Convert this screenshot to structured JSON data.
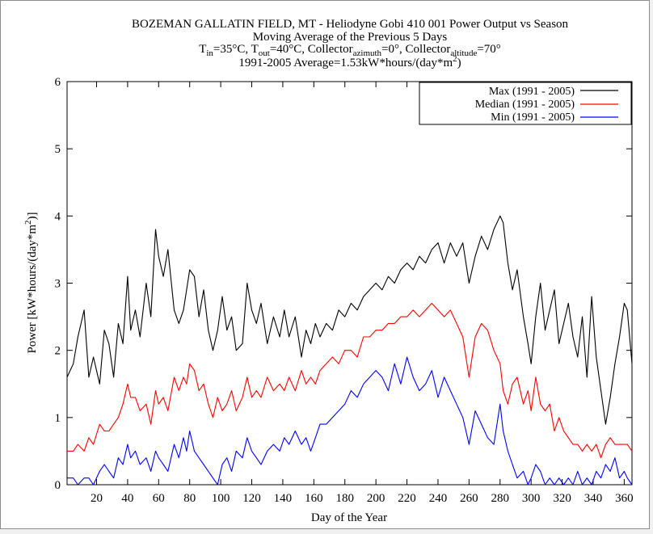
{
  "chart_data": {
    "type": "line",
    "title": "BOZEMAN GALLATIN FIELD, MT - Heliodyne Gobi 410 001 Power Output vs Season",
    "subtitle_lines": [
      "Moving Average of the Previous 5 Days",
      "T_in=35°C, T_out=40°C, Collector_azimuth=0°, Collector_altitude=70°",
      "1991-2005 Average=1.53kW*hours/(day*m^2)"
    ],
    "title_parts": {
      "l2_a": "T",
      "l2_a_sub": "in",
      "l2_b": "=35°C, T",
      "l2_b_sub": "out",
      "l2_c": "=40°C, Collector",
      "l2_c_sub": "azimuth",
      "l2_d": "=0°, Collector",
      "l2_d_sub": "altitude",
      "l2_e": "=70°",
      "l3_a": "1991-2005 Average=1.53kW*hours/(day*m",
      "l3_sup": "2",
      "l3_b": ")"
    },
    "xlabel": "Day of the Year",
    "ylabel_parts": {
      "a": "Power [kW*hours/(day*m",
      "sup": "2",
      "b": ")]"
    },
    "xlim": [
      1,
      365
    ],
    "ylim": [
      0,
      6
    ],
    "xticks": [
      20,
      40,
      60,
      80,
      100,
      120,
      140,
      160,
      180,
      200,
      220,
      240,
      260,
      280,
      300,
      320,
      340,
      360
    ],
    "yticks": [
      0,
      1,
      2,
      3,
      4,
      5,
      6
    ],
    "grid": false,
    "legend_position": "top-right",
    "series": [
      {
        "name": "Max (1991 - 2005)",
        "color": "#000000",
        "x": [
          1,
          5,
          8,
          12,
          15,
          18,
          22,
          25,
          28,
          31,
          34,
          37,
          40,
          42,
          45,
          48,
          52,
          55,
          58,
          60,
          63,
          66,
          70,
          73,
          76,
          78,
          80,
          83,
          86,
          89,
          92,
          95,
          98,
          101,
          104,
          107,
          110,
          114,
          117,
          120,
          123,
          126,
          130,
          134,
          138,
          141,
          144,
          148,
          152,
          155,
          158,
          161,
          164,
          168,
          172,
          176,
          180,
          184,
          188,
          192,
          196,
          200,
          204,
          208,
          212,
          216,
          220,
          224,
          228,
          232,
          236,
          240,
          244,
          248,
          252,
          256,
          260,
          264,
          268,
          272,
          276,
          280,
          282,
          285,
          288,
          291,
          295,
          298,
          300,
          303,
          306,
          309,
          312,
          315,
          318,
          321,
          324,
          327,
          330,
          333,
          336,
          339,
          342,
          345,
          348,
          351,
          354,
          357,
          360,
          362,
          365
        ],
        "values": [
          1.6,
          1.8,
          2.2,
          2.6,
          1.6,
          1.9,
          1.5,
          2.3,
          2.1,
          1.6,
          2.4,
          2.1,
          3.1,
          2.3,
          2.6,
          2.2,
          3.0,
          2.5,
          3.8,
          3.4,
          3.1,
          3.5,
          2.6,
          2.4,
          2.6,
          2.9,
          3.2,
          3.1,
          2.5,
          2.9,
          2.3,
          2.0,
          2.3,
          2.8,
          2.3,
          2.5,
          2.0,
          2.1,
          3.0,
          2.6,
          2.4,
          2.7,
          2.1,
          2.5,
          2.2,
          2.6,
          2.2,
          2.5,
          1.9,
          2.3,
          2.1,
          2.4,
          2.2,
          2.4,
          2.3,
          2.6,
          2.5,
          2.7,
          2.6,
          2.8,
          2.9,
          3.0,
          2.9,
          3.1,
          3.0,
          3.2,
          3.3,
          3.2,
          3.4,
          3.3,
          3.5,
          3.6,
          3.3,
          3.6,
          3.4,
          3.6,
          3.0,
          3.4,
          3.7,
          3.5,
          3.8,
          4.0,
          3.9,
          3.3,
          2.9,
          3.2,
          2.5,
          2.1,
          1.8,
          2.5,
          3.0,
          2.3,
          2.6,
          2.9,
          2.1,
          2.4,
          2.7,
          2.2,
          1.9,
          2.5,
          1.6,
          2.8,
          1.9,
          1.4,
          0.9,
          1.3,
          1.8,
          2.2,
          2.7,
          2.6,
          1.8
        ]
      },
      {
        "name": "Median (1991 - 2005)",
        "color": "#ff0000",
        "x": [
          1,
          5,
          8,
          12,
          15,
          18,
          22,
          25,
          28,
          31,
          34,
          37,
          40,
          42,
          45,
          48,
          52,
          55,
          58,
          60,
          63,
          66,
          70,
          73,
          76,
          78,
          80,
          83,
          86,
          89,
          92,
          95,
          98,
          101,
          104,
          107,
          110,
          114,
          117,
          120,
          123,
          126,
          130,
          134,
          138,
          141,
          144,
          148,
          152,
          155,
          158,
          161,
          164,
          168,
          172,
          176,
          180,
          184,
          188,
          192,
          196,
          200,
          204,
          208,
          212,
          216,
          220,
          224,
          228,
          232,
          236,
          240,
          244,
          248,
          252,
          256,
          260,
          264,
          268,
          272,
          276,
          280,
          282,
          285,
          288,
          291,
          295,
          298,
          300,
          303,
          306,
          309,
          312,
          315,
          318,
          321,
          324,
          327,
          330,
          333,
          336,
          339,
          342,
          345,
          348,
          351,
          354,
          357,
          360,
          362,
          365
        ],
        "values": [
          0.5,
          0.5,
          0.6,
          0.5,
          0.7,
          0.6,
          0.9,
          0.8,
          0.8,
          0.9,
          1.0,
          1.2,
          1.5,
          1.3,
          1.3,
          1.1,
          1.2,
          0.9,
          1.4,
          1.2,
          1.3,
          1.1,
          1.6,
          1.4,
          1.6,
          1.5,
          1.8,
          1.7,
          1.4,
          1.5,
          1.2,
          1.0,
          1.3,
          1.1,
          1.2,
          1.4,
          1.1,
          1.3,
          1.6,
          1.3,
          1.4,
          1.3,
          1.6,
          1.4,
          1.5,
          1.4,
          1.6,
          1.4,
          1.7,
          1.5,
          1.6,
          1.5,
          1.7,
          1.8,
          1.9,
          1.8,
          2.0,
          2.0,
          1.9,
          2.2,
          2.2,
          2.3,
          2.3,
          2.4,
          2.4,
          2.5,
          2.5,
          2.6,
          2.5,
          2.6,
          2.7,
          2.6,
          2.5,
          2.6,
          2.4,
          2.2,
          1.6,
          2.2,
          2.4,
          2.3,
          2.0,
          1.8,
          1.4,
          1.2,
          1.5,
          1.6,
          1.2,
          1.4,
          1.1,
          1.6,
          1.2,
          1.1,
          1.2,
          0.8,
          1.0,
          0.8,
          0.7,
          0.6,
          0.6,
          0.5,
          0.6,
          0.5,
          0.6,
          0.4,
          0.6,
          0.7,
          0.6,
          0.6,
          0.6,
          0.6,
          0.5
        ]
      },
      {
        "name": "Min (1991 - 2005)",
        "color": "#0000ff",
        "x": [
          1,
          5,
          8,
          12,
          15,
          18,
          22,
          25,
          28,
          31,
          34,
          37,
          40,
          42,
          45,
          48,
          52,
          55,
          58,
          60,
          63,
          66,
          70,
          73,
          76,
          78,
          80,
          83,
          86,
          89,
          92,
          95,
          98,
          101,
          104,
          107,
          110,
          114,
          117,
          120,
          123,
          126,
          130,
          134,
          138,
          141,
          144,
          148,
          152,
          155,
          158,
          161,
          164,
          168,
          172,
          176,
          180,
          184,
          188,
          192,
          196,
          200,
          204,
          208,
          212,
          216,
          220,
          224,
          228,
          232,
          236,
          240,
          244,
          248,
          252,
          256,
          260,
          264,
          268,
          272,
          276,
          280,
          282,
          285,
          288,
          291,
          295,
          298,
          300,
          303,
          306,
          309,
          312,
          315,
          318,
          321,
          324,
          327,
          330,
          333,
          336,
          339,
          342,
          345,
          348,
          351,
          354,
          357,
          360,
          362,
          365
        ],
        "values": [
          0.1,
          0.1,
          0.0,
          0.1,
          0.1,
          0.0,
          0.2,
          0.3,
          0.2,
          0.1,
          0.4,
          0.3,
          0.6,
          0.4,
          0.5,
          0.3,
          0.4,
          0.2,
          0.5,
          0.4,
          0.3,
          0.2,
          0.6,
          0.4,
          0.7,
          0.5,
          0.8,
          0.5,
          0.4,
          0.3,
          0.2,
          0.1,
          0.0,
          0.3,
          0.4,
          0.2,
          0.5,
          0.4,
          0.7,
          0.5,
          0.4,
          0.3,
          0.5,
          0.6,
          0.5,
          0.7,
          0.6,
          0.8,
          0.6,
          0.7,
          0.5,
          0.7,
          0.9,
          0.9,
          1.0,
          1.1,
          1.2,
          1.4,
          1.3,
          1.5,
          1.6,
          1.7,
          1.6,
          1.4,
          1.8,
          1.5,
          1.9,
          1.6,
          1.4,
          1.5,
          1.7,
          1.3,
          1.6,
          1.4,
          1.2,
          1.0,
          0.6,
          1.1,
          0.9,
          0.7,
          0.6,
          1.2,
          0.8,
          0.5,
          0.3,
          0.1,
          0.2,
          0.0,
          0.1,
          0.3,
          0.2,
          0.0,
          0.1,
          0.0,
          0.1,
          0.0,
          0.1,
          0.0,
          0.2,
          0.0,
          0.1,
          0.0,
          0.2,
          0.1,
          0.3,
          0.2,
          0.4,
          0.1,
          0.2,
          0.1,
          0.0
        ]
      }
    ]
  }
}
